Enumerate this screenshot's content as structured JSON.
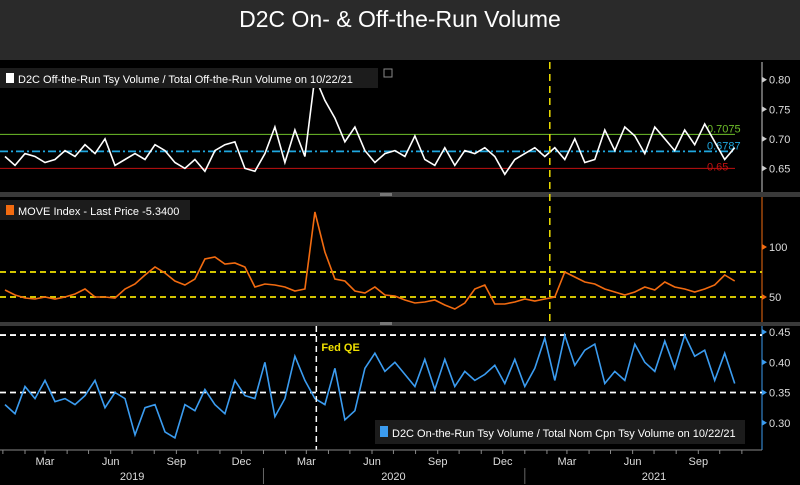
{
  "title": "D2C On- & Off-the-Run Volume",
  "chart_data": [
    {
      "type": "line",
      "panel": "top",
      "legend": "D2C Off-the-Run Tsy Volume / Total Off-the-Run Volume on 10/22/21",
      "legend_placement": "top-left",
      "ylim": [
        0.61,
        0.83
      ],
      "y_ticks": [
        "0.80",
        "0.75",
        "0.70",
        "0.65"
      ],
      "y_tick_values": [
        0.8,
        0.75,
        0.7,
        0.65
      ],
      "series_color": "#ffffff",
      "ref_lines": [
        {
          "value": 0.7075,
          "label": "0.7075",
          "color": "#6fbf2a",
          "style": "solid"
        },
        {
          "value": 0.6787,
          "label": "0.6787",
          "color": "#1fa8e0",
          "style": "dashdot"
        },
        {
          "value": 0.65,
          "label": "0.65",
          "color": "#c01010",
          "style": "solid"
        }
      ],
      "values": [
        0.67,
        0.655,
        0.675,
        0.67,
        0.66,
        0.665,
        0.68,
        0.67,
        0.69,
        0.675,
        0.7,
        0.655,
        0.665,
        0.675,
        0.665,
        0.69,
        0.68,
        0.66,
        0.65,
        0.665,
        0.645,
        0.68,
        0.69,
        0.695,
        0.65,
        0.645,
        0.675,
        0.72,
        0.66,
        0.715,
        0.67,
        0.805,
        0.765,
        0.735,
        0.695,
        0.72,
        0.68,
        0.66,
        0.675,
        0.68,
        0.67,
        0.705,
        0.665,
        0.655,
        0.685,
        0.655,
        0.68,
        0.675,
        0.685,
        0.67,
        0.64,
        0.665,
        0.675,
        0.685,
        0.67,
        0.685,
        0.665,
        0.7,
        0.66,
        0.665,
        0.715,
        0.68,
        0.72,
        0.705,
        0.675,
        0.72,
        0.7,
        0.68,
        0.715,
        0.69,
        0.725,
        0.695,
        0.665,
        0.685
      ]
    },
    {
      "type": "line",
      "panel": "middle",
      "legend": "MOVE Index - Last Price -5.3400",
      "legend_placement": "top-left",
      "ylim": [
        25,
        150
      ],
      "y_ticks": [
        "100",
        "50"
      ],
      "y_tick_values": [
        100,
        50
      ],
      "series_color": "#f26b10",
      "ref_lines": [
        {
          "value": 75,
          "color": "#f0e000",
          "style": "dashed"
        },
        {
          "value": 50,
          "color": "#f0e000",
          "style": "dashed"
        }
      ],
      "values": [
        57,
        52,
        49,
        48,
        50,
        48,
        50,
        53,
        58,
        50,
        50,
        49,
        58,
        63,
        72,
        80,
        74,
        66,
        62,
        68,
        88,
        90,
        83,
        84,
        80,
        60,
        63,
        62,
        60,
        56,
        58,
        135,
        95,
        68,
        66,
        56,
        54,
        60,
        52,
        51,
        47,
        44,
        45,
        47,
        42,
        38,
        44,
        58,
        62,
        43,
        43,
        45,
        48,
        46,
        48,
        50,
        75,
        70,
        65,
        63,
        58,
        55,
        52,
        55,
        60,
        57,
        65,
        60,
        58,
        55,
        58,
        62,
        72,
        66
      ]
    },
    {
      "type": "line",
      "panel": "bottom",
      "legend": "D2C On-the-Run Tsy Volume / Total Nom Cpn Tsy Volume on 10/22/21",
      "legend_placement": "bottom-right",
      "ylim": [
        0.255,
        0.46
      ],
      "y_ticks": [
        "0.45",
        "0.40",
        "0.35",
        "0.30"
      ],
      "y_tick_values": [
        0.45,
        0.4,
        0.35,
        0.3
      ],
      "series_color": "#3b9cf0",
      "ref_lines": [
        {
          "value": 0.445,
          "color": "#ffffff",
          "style": "dashed"
        },
        {
          "value": 0.35,
          "color": "#ffffff",
          "style": "dashed"
        }
      ],
      "annotation": {
        "text": "Fed QE",
        "date": "2020-03-15",
        "color": "#f0e000"
      },
      "values": [
        0.33,
        0.315,
        0.36,
        0.34,
        0.37,
        0.335,
        0.34,
        0.33,
        0.345,
        0.37,
        0.325,
        0.35,
        0.34,
        0.28,
        0.325,
        0.33,
        0.285,
        0.275,
        0.33,
        0.32,
        0.355,
        0.33,
        0.315,
        0.37,
        0.345,
        0.34,
        0.4,
        0.31,
        0.34,
        0.41,
        0.37,
        0.34,
        0.33,
        0.39,
        0.305,
        0.32,
        0.39,
        0.415,
        0.385,
        0.4,
        0.38,
        0.36,
        0.405,
        0.355,
        0.405,
        0.36,
        0.385,
        0.37,
        0.38,
        0.395,
        0.365,
        0.405,
        0.36,
        0.39,
        0.44,
        0.37,
        0.445,
        0.395,
        0.42,
        0.43,
        0.365,
        0.385,
        0.37,
        0.43,
        0.4,
        0.385,
        0.435,
        0.39,
        0.445,
        0.41,
        0.42,
        0.37,
        0.415,
        0.365
      ]
    }
  ],
  "vertical_marker": {
    "date": "2021-02-05",
    "color": "#f0e000"
  },
  "dates": [
    "2019-01-04",
    "2019-01-18",
    "2019-02-01",
    "2019-02-15",
    "2019-03-01",
    "2019-03-15",
    "2019-03-29",
    "2019-04-12",
    "2019-04-26",
    "2019-05-10",
    "2019-05-24",
    "2019-06-07",
    "2019-06-21",
    "2019-07-05",
    "2019-07-19",
    "2019-08-02",
    "2019-08-16",
    "2019-08-30",
    "2019-09-13",
    "2019-09-27",
    "2019-10-11",
    "2019-10-25",
    "2019-11-08",
    "2019-11-22",
    "2019-12-06",
    "2019-12-20",
    "2020-01-03",
    "2020-01-17",
    "2020-01-31",
    "2020-02-14",
    "2020-02-28",
    "2020-03-13",
    "2020-03-27",
    "2020-04-10",
    "2020-04-24",
    "2020-05-08",
    "2020-05-22",
    "2020-06-05",
    "2020-06-19",
    "2020-07-03",
    "2020-07-17",
    "2020-07-31",
    "2020-08-14",
    "2020-08-28",
    "2020-09-11",
    "2020-09-25",
    "2020-10-09",
    "2020-10-23",
    "2020-11-06",
    "2020-11-20",
    "2020-12-04",
    "2020-12-18",
    "2021-01-01",
    "2021-01-15",
    "2021-01-29",
    "2021-02-12",
    "2021-02-26",
    "2021-03-12",
    "2021-03-26",
    "2021-04-09",
    "2021-04-23",
    "2021-05-07",
    "2021-05-21",
    "2021-06-04",
    "2021-06-18",
    "2021-07-02",
    "2021-07-16",
    "2021-07-30",
    "2021-08-13",
    "2021-08-27",
    "2021-09-10",
    "2021-09-24",
    "2021-10-08",
    "2021-10-22"
  ],
  "x_axis": {
    "months": [
      {
        "label": "Mar",
        "date": "2019-03-01"
      },
      {
        "label": "Jun",
        "date": "2019-06-01"
      },
      {
        "label": "Sep",
        "date": "2019-09-01"
      },
      {
        "label": "Dec",
        "date": "2019-12-01"
      },
      {
        "label": "Mar",
        "date": "2020-03-01"
      },
      {
        "label": "Jun",
        "date": "2020-06-01"
      },
      {
        "label": "Sep",
        "date": "2020-09-01"
      },
      {
        "label": "Dec",
        "date": "2020-12-01"
      },
      {
        "label": "Mar",
        "date": "2021-03-01"
      },
      {
        "label": "Jun",
        "date": "2021-06-01"
      },
      {
        "label": "Sep",
        "date": "2021-09-01"
      }
    ],
    "years": [
      {
        "label": "2019",
        "date": "2019-07-01"
      },
      {
        "label": "2020",
        "date": "2020-07-01"
      },
      {
        "label": "2021",
        "date": "2021-07-01"
      }
    ]
  }
}
